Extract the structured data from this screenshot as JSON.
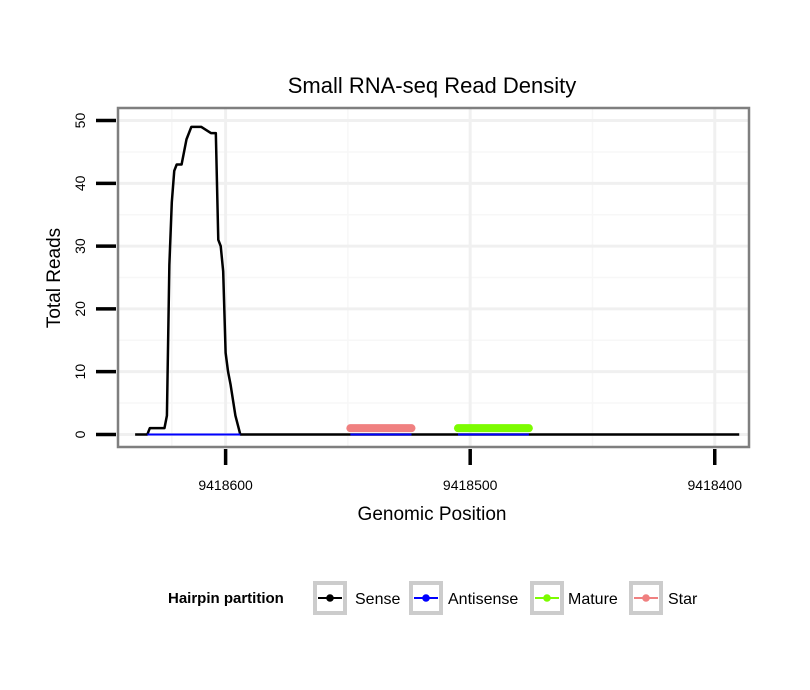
{
  "chart_data": {
    "type": "line",
    "title": "Small RNA-seq Read Density",
    "xlabel": "Genomic Position",
    "ylabel": "Total Reads",
    "x_reversed": true,
    "xlim": [
      9418644,
      9418386
    ],
    "ylim": [
      -2,
      52
    ],
    "x_ticks": [
      9418600,
      9418500,
      9418400
    ],
    "x_tick_labels": [
      "9418600",
      "9418500",
      "9418400"
    ],
    "y_ticks": [
      0,
      10,
      20,
      30,
      40,
      50
    ],
    "y_tick_labels": [
      "0",
      "10",
      "20",
      "30",
      "40",
      "50"
    ],
    "grid": true,
    "legend": {
      "title": "Hairpin partition",
      "position": "bottom",
      "entries": [
        "Sense",
        "Antisense",
        "Mature",
        "Star"
      ]
    },
    "series": [
      {
        "name": "Sense",
        "color": "#000000",
        "x": [
          9418637,
          9418632,
          9418631,
          9418625,
          9418624,
          9418623,
          9418622,
          9418621,
          9418620,
          9418619,
          9418618,
          9418616,
          9418614,
          9418612,
          9418610,
          9418606,
          9418604,
          9418603,
          9418602,
          9418601,
          9418600,
          9418599,
          9418598,
          9418596,
          9418594,
          9418390
        ],
        "y": [
          0,
          0,
          1,
          1,
          3,
          27,
          37,
          42,
          43,
          43,
          43,
          47,
          49,
          49,
          49,
          48,
          48,
          31,
          30,
          26,
          13,
          10,
          8,
          3,
          0,
          0
        ]
      },
      {
        "name": "Antisense",
        "color": "#0000ff",
        "x": [
          9418632,
          9418594,
          9418549,
          9418524,
          9418505,
          9418476
        ],
        "y": [
          0,
          0,
          0,
          0,
          0,
          0
        ]
      },
      {
        "name": "Mature",
        "color": "#7cfc00",
        "x": [
          9418505,
          9418476
        ],
        "y": [
          1,
          1
        ]
      },
      {
        "name": "Star",
        "color": "#f08080",
        "x": [
          9418549,
          9418524
        ],
        "y": [
          1,
          1
        ]
      }
    ]
  }
}
